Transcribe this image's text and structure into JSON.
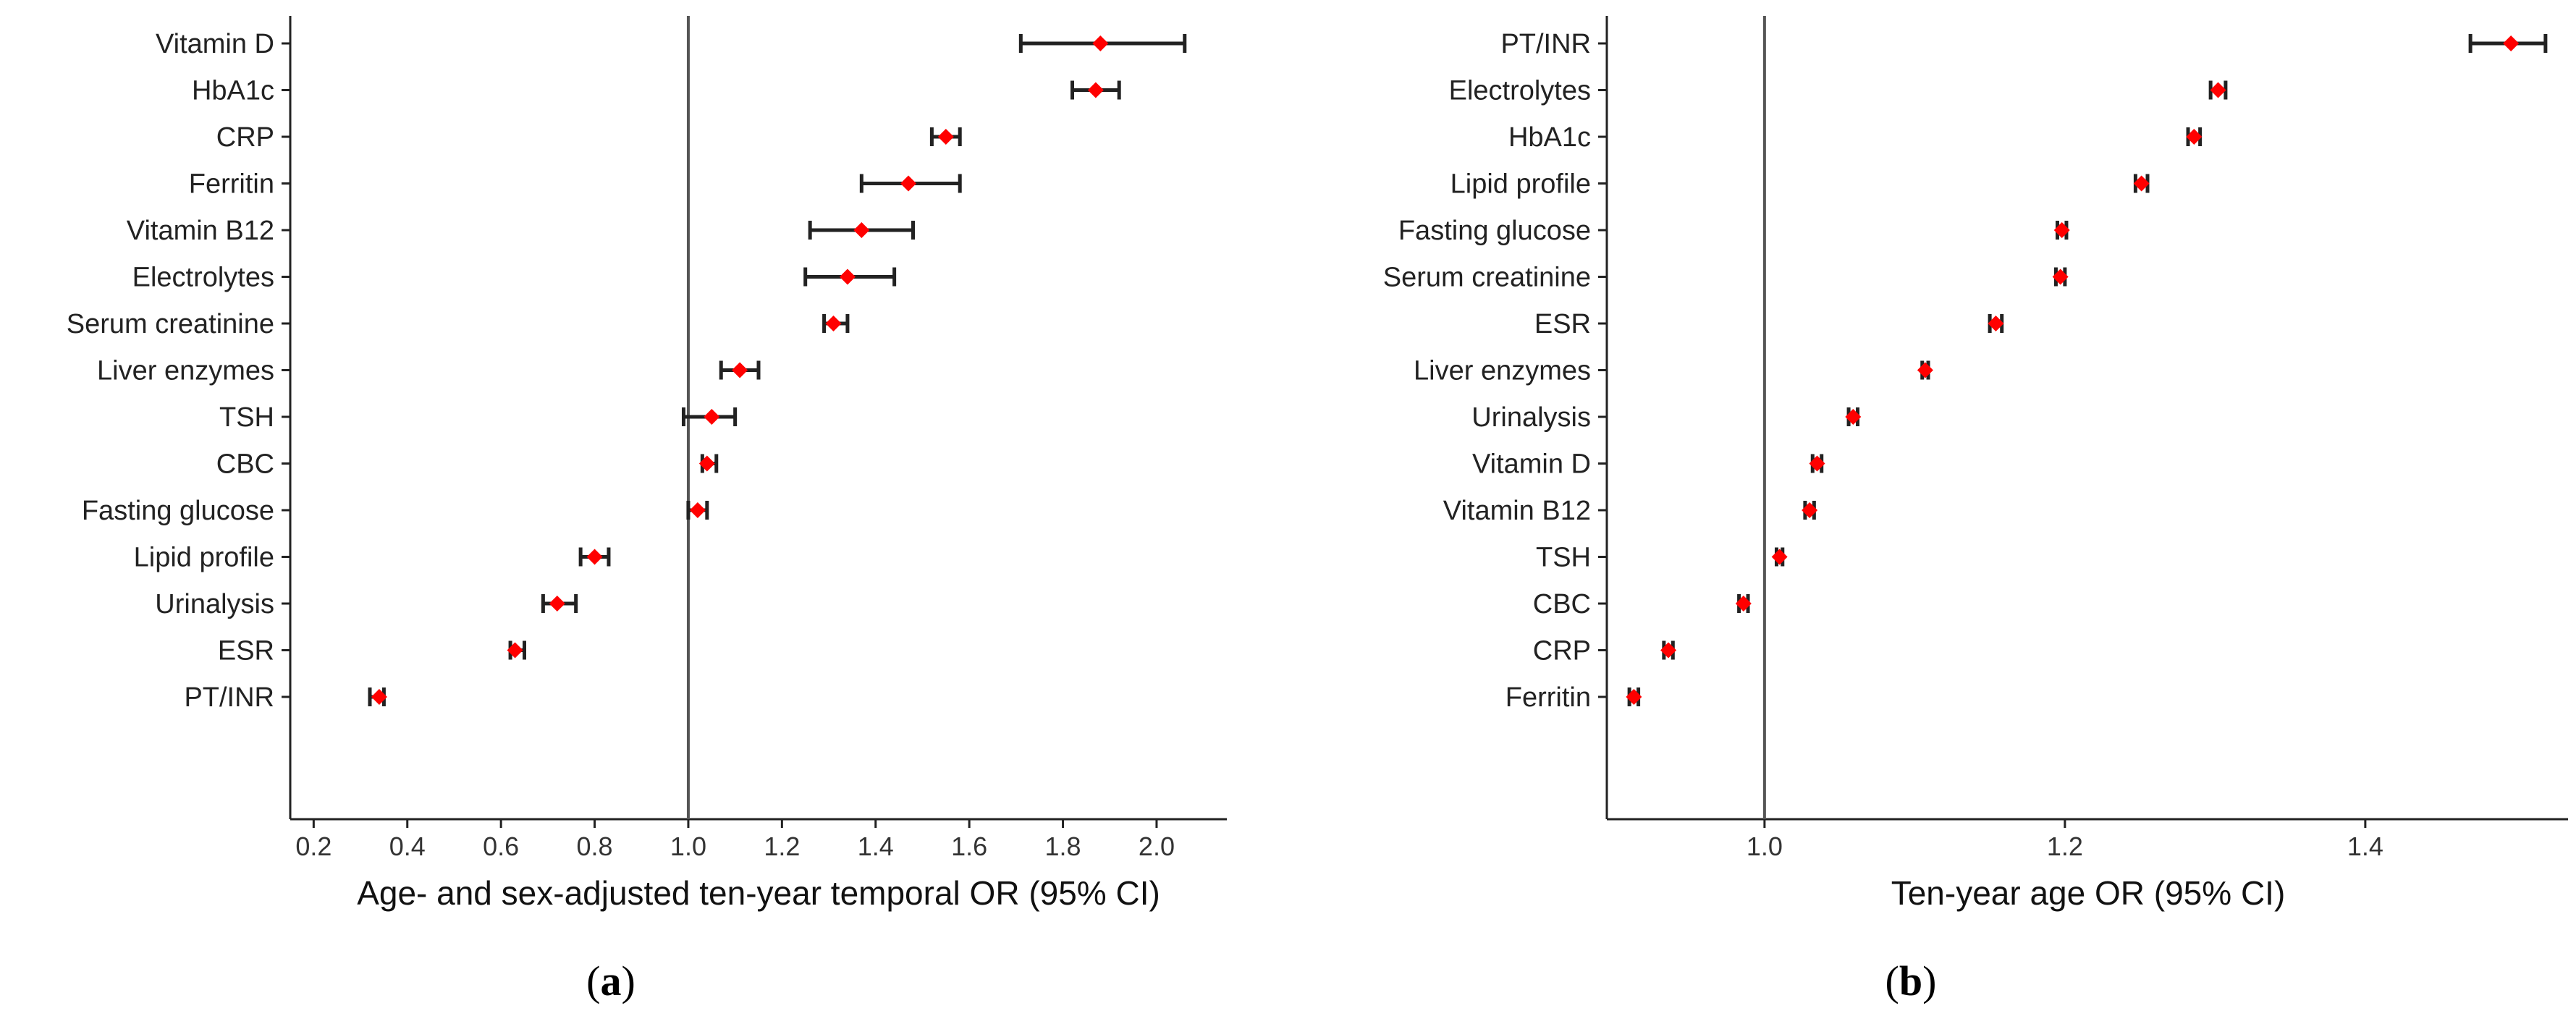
{
  "colors": {
    "point": "#ff0000",
    "errorbar": "#222222",
    "refline": "#555555",
    "axis": "#222222"
  },
  "chart_data": [
    {
      "type": "scatter",
      "variant": "forest-plot",
      "panel_label": "a",
      "xlabel": "Age- and sex-adjusted ten-year temporal OR (95% CI)",
      "xlim": [
        0.15,
        2.15
      ],
      "xticks": [
        0.2,
        0.4,
        0.6,
        0.8,
        1.0,
        1.2,
        1.4,
        1.6,
        1.8,
        2.0
      ],
      "xtick_labels": [
        "0.2",
        "0.4",
        "0.6",
        "0.8",
        "1.0",
        "1.2",
        "1.4",
        "1.6",
        "1.8",
        "2.0"
      ],
      "reference_line": 1.0,
      "categories": [
        "Vitamin D",
        "HbA1c",
        "CRP",
        "Ferritin",
        "Vitamin B12",
        "Electrolytes",
        "Serum creatinine",
        "Liver enzymes",
        "TSH",
        "CBC",
        "Fasting glucose",
        "Lipid profile",
        "Urinalysis",
        "ESR",
        "PT/INR"
      ],
      "or": [
        1.88,
        1.87,
        1.55,
        1.47,
        1.37,
        1.34,
        1.31,
        1.11,
        1.05,
        1.04,
        1.02,
        0.8,
        0.72,
        0.63,
        0.34
      ],
      "ci_low": [
        1.71,
        1.82,
        1.52,
        1.37,
        1.26,
        1.25,
        1.29,
        1.07,
        0.99,
        1.03,
        1.0,
        0.77,
        0.69,
        0.62,
        0.32
      ],
      "ci_high": [
        2.06,
        1.92,
        1.58,
        1.58,
        1.48,
        1.44,
        1.34,
        1.15,
        1.1,
        1.06,
        1.04,
        0.83,
        0.76,
        0.65,
        0.35
      ]
    },
    {
      "type": "scatter",
      "variant": "forest-plot",
      "panel_label": "b",
      "xlabel": "Ten-year age OR (95% CI)",
      "xlim": [
        0.895,
        1.535
      ],
      "xticks": [
        1.0,
        1.2,
        1.4
      ],
      "xtick_labels": [
        "1.0",
        "1.2",
        "1.4"
      ],
      "reference_line": 1.0,
      "categories": [
        "PT/INR",
        "Electrolytes",
        "HbA1c",
        "Lipid profile",
        "Fasting glucose",
        "Serum creatinine",
        "ESR",
        "Liver enzymes",
        "Urinalysis",
        "Vitamin D",
        "Vitamin B12",
        "TSH",
        "CBC",
        "CRP",
        "Ferritin"
      ],
      "or": [
        1.497,
        1.302,
        1.286,
        1.251,
        1.198,
        1.197,
        1.154,
        1.107,
        1.059,
        1.035,
        1.03,
        1.01,
        0.986,
        0.936,
        0.913
      ],
      "ci_low": [
        1.47,
        1.297,
        1.282,
        1.247,
        1.195,
        1.194,
        1.15,
        1.105,
        1.056,
        1.032,
        1.027,
        1.008,
        0.983,
        0.933,
        0.91
      ],
      "ci_high": [
        1.52,
        1.307,
        1.29,
        1.255,
        1.201,
        1.2,
        1.158,
        1.109,
        1.062,
        1.038,
        1.033,
        1.012,
        0.989,
        0.939,
        0.916
      ]
    }
  ]
}
